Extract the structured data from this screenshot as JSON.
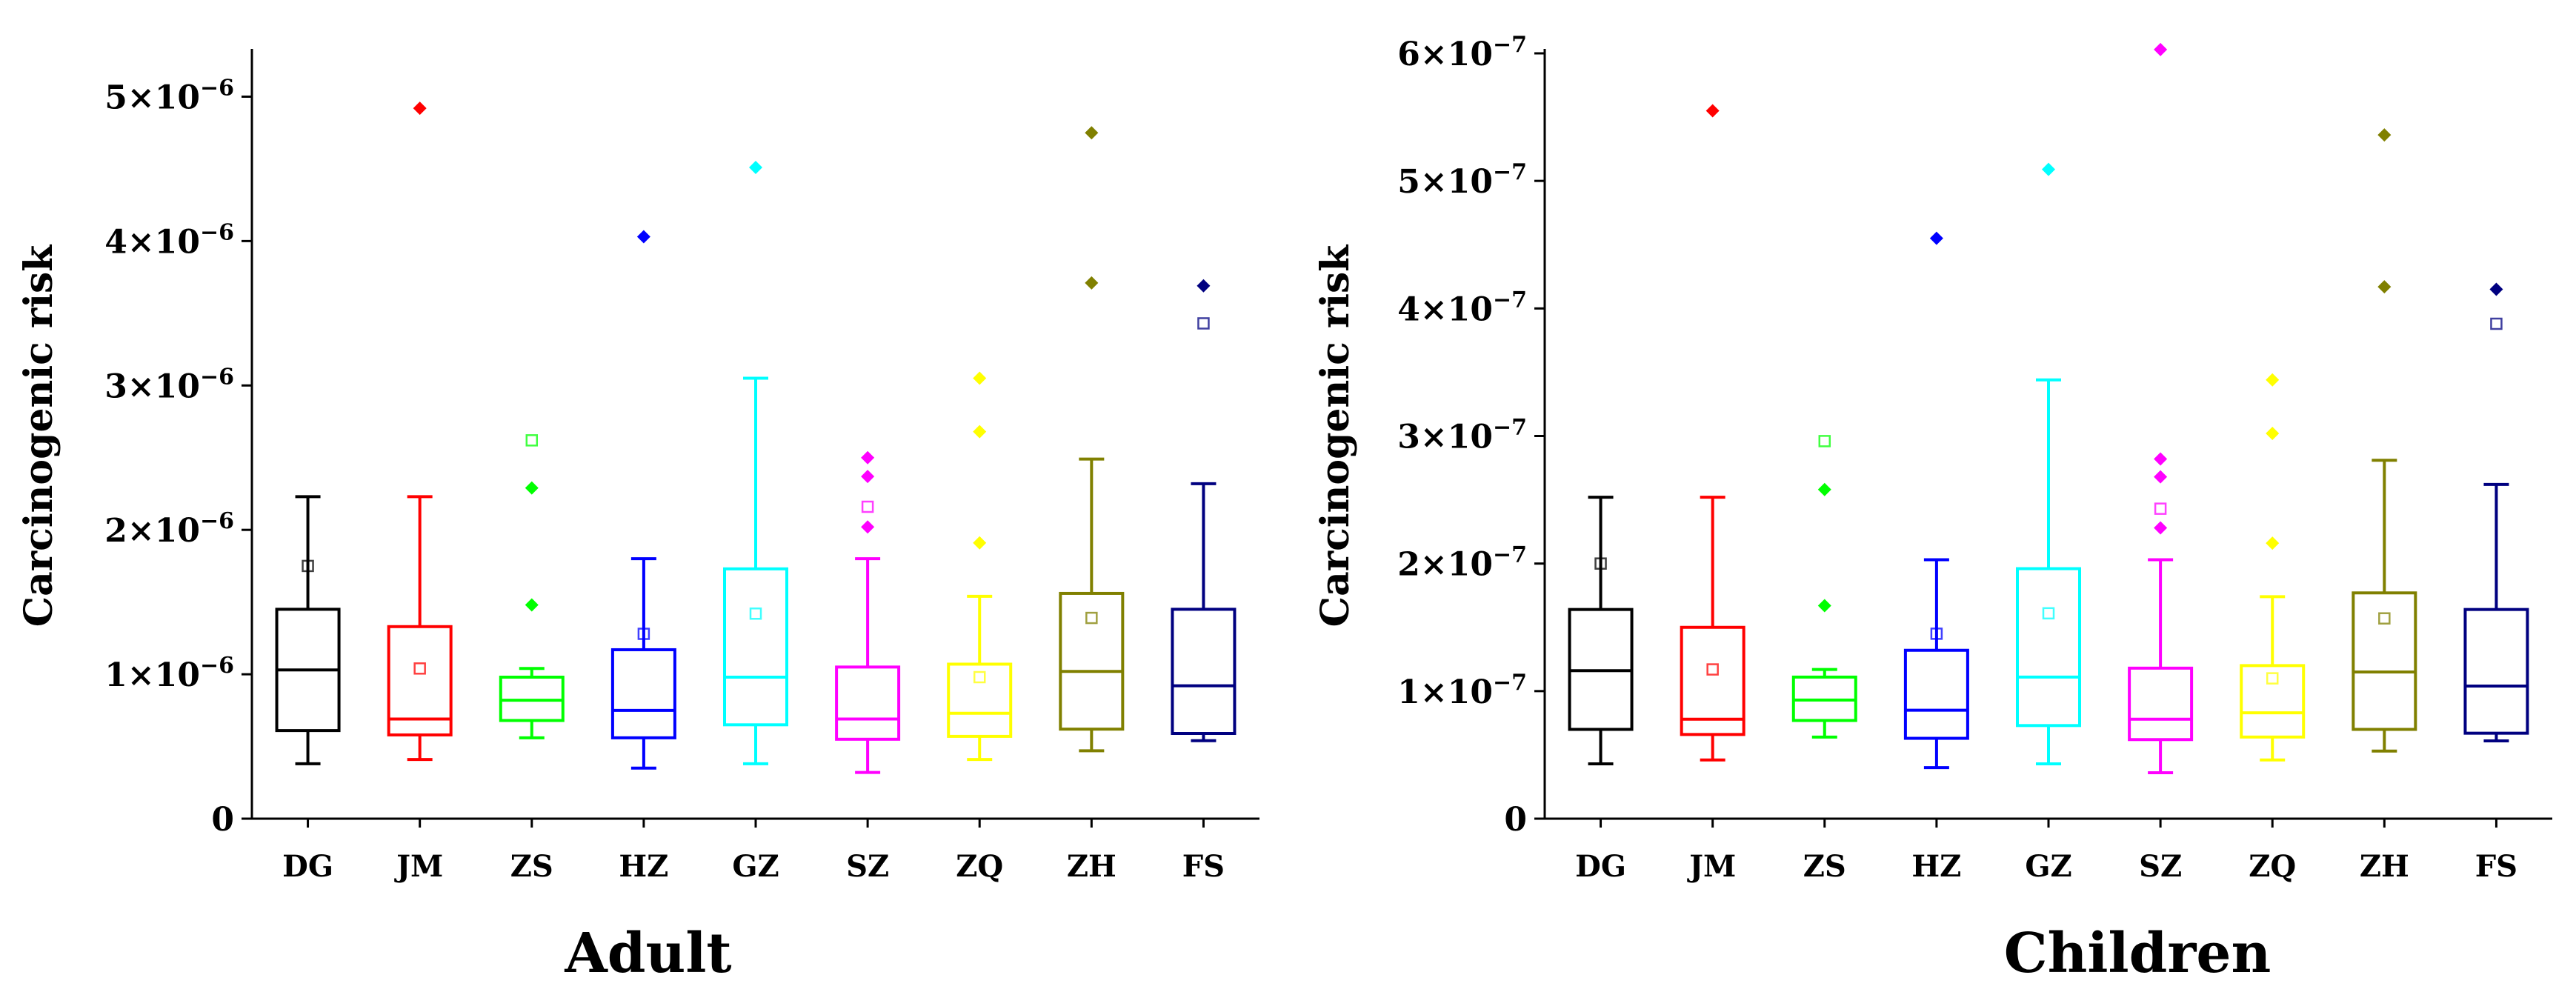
{
  "chart_data": [
    {
      "type": "box",
      "title": "Adult",
      "ylabel": "Carcinogenic risk",
      "ylim": [
        0,
        5.3e-06
      ],
      "yticks": [
        0,
        1e-06,
        2e-06,
        3e-06,
        4e-06,
        5e-06
      ],
      "ytick_labels": [
        {
          "text": "0"
        },
        {
          "mant": "1",
          "exp": "−6"
        },
        {
          "mant": "2",
          "exp": "−6"
        },
        {
          "mant": "3",
          "exp": "−6"
        },
        {
          "mant": "4",
          "exp": "−6"
        },
        {
          "mant": "5",
          "exp": "−6"
        }
      ],
      "categories": [
        "DG",
        "JM",
        "ZS",
        "HZ",
        "GZ",
        "SZ",
        "ZQ",
        "ZH",
        "FS"
      ],
      "series": [
        {
          "name": "DG",
          "color": "#000000",
          "whisker_low": 3.8e-07,
          "q1": 6.1e-07,
          "median": 1.03e-06,
          "q3": 1.45e-06,
          "whisker_high": 2.23e-06,
          "mean": 1.75e-06,
          "outliers": []
        },
        {
          "name": "JM",
          "color": "#ff0000",
          "whisker_low": 4.1e-07,
          "q1": 5.8e-07,
          "median": 6.9e-07,
          "q3": 1.33e-06,
          "whisker_high": 2.23e-06,
          "mean": 1.04e-06,
          "outliers": [
            4.92e-06
          ]
        },
        {
          "name": "ZS",
          "color": "#00ff00",
          "whisker_low": 5.6e-07,
          "q1": 6.8e-07,
          "median": 8.2e-07,
          "q3": 9.8e-07,
          "whisker_high": 1.04e-06,
          "mean": 2.62e-06,
          "outliers": [
            1.48e-06,
            2.29e-06
          ]
        },
        {
          "name": "HZ",
          "color": "#0000ff",
          "whisker_low": 3.5e-07,
          "q1": 5.6e-07,
          "median": 7.5e-07,
          "q3": 1.17e-06,
          "whisker_high": 1.8e-06,
          "mean": 1.28e-06,
          "outliers": [
            4.03e-06
          ]
        },
        {
          "name": "GZ",
          "color": "#00ffff",
          "whisker_low": 3.8e-07,
          "q1": 6.5e-07,
          "median": 9.8e-07,
          "q3": 1.73e-06,
          "whisker_high": 3.05e-06,
          "mean": 1.42e-06,
          "outliers": [
            4.51e-06
          ]
        },
        {
          "name": "SZ",
          "color": "#ff00ff",
          "whisker_low": 3.2e-07,
          "q1": 5.5e-07,
          "median": 6.9e-07,
          "q3": 1.05e-06,
          "whisker_high": 1.8e-06,
          "mean": 2.16e-06,
          "outliers": [
            2.02e-06,
            2.37e-06,
            2.5e-06
          ]
        },
        {
          "name": "ZQ",
          "color": "#ffff00",
          "whisker_low": 4.1e-07,
          "q1": 5.7e-07,
          "median": 7.3e-07,
          "q3": 1.07e-06,
          "whisker_high": 1.54e-06,
          "mean": 9.8e-07,
          "outliers": [
            1.91e-06,
            2.68e-06,
            3.05e-06
          ]
        },
        {
          "name": "ZH",
          "color": "#808000",
          "whisker_low": 4.7e-07,
          "q1": 6.2e-07,
          "median": 1.02e-06,
          "q3": 1.56e-06,
          "whisker_high": 2.49e-06,
          "mean": 1.39e-06,
          "outliers": [
            3.71e-06,
            4.75e-06
          ]
        },
        {
          "name": "FS",
          "color": "#000080",
          "whisker_low": 5.4e-07,
          "q1": 5.9e-07,
          "median": 9.2e-07,
          "q3": 1.45e-06,
          "whisker_high": 2.32e-06,
          "mean": 3.43e-06,
          "outliers": [
            3.69e-06
          ]
        }
      ]
    },
    {
      "type": "box",
      "title": "Children",
      "ylabel": "Carcinogenic risk",
      "ylim": [
        0,
        6e-07
      ],
      "yticks": [
        0,
        1e-07,
        2e-07,
        3e-07,
        4e-07,
        5e-07,
        6e-07
      ],
      "ytick_labels": [
        {
          "text": "0"
        },
        {
          "mant": "1",
          "exp": "−7"
        },
        {
          "mant": "2",
          "exp": "−7"
        },
        {
          "mant": "3",
          "exp": "−7"
        },
        {
          "mant": "4",
          "exp": "−7"
        },
        {
          "mant": "5",
          "exp": "−7"
        },
        {
          "mant": "6",
          "exp": "−7"
        }
      ],
      "categories": [
        "DG",
        "JM",
        "ZS",
        "HZ",
        "GZ",
        "SZ",
        "ZQ",
        "ZH",
        "FS"
      ],
      "series": [
        {
          "name": "DG",
          "color": "#000000",
          "whisker_low": 4.3e-08,
          "q1": 7e-08,
          "median": 1.16e-07,
          "q3": 1.64e-07,
          "whisker_high": 2.52e-07,
          "mean": 2e-07,
          "outliers": []
        },
        {
          "name": "JM",
          "color": "#ff0000",
          "whisker_low": 4.6e-08,
          "q1": 6.6e-08,
          "median": 7.8e-08,
          "q3": 1.5e-07,
          "whisker_high": 2.52e-07,
          "mean": 1.17e-07,
          "outliers": [
            5.55e-07
          ]
        },
        {
          "name": "ZS",
          "color": "#00ff00",
          "whisker_low": 6.4e-08,
          "q1": 7.7e-08,
          "median": 9.3e-08,
          "q3": 1.11e-07,
          "whisker_high": 1.17e-07,
          "mean": 2.96e-07,
          "outliers": [
            1.67e-07,
            2.58e-07
          ]
        },
        {
          "name": "HZ",
          "color": "#0000ff",
          "whisker_low": 4e-08,
          "q1": 6.3e-08,
          "median": 8.5e-08,
          "q3": 1.32e-07,
          "whisker_high": 2.03e-07,
          "mean": 1.45e-07,
          "outliers": [
            4.55e-07
          ]
        },
        {
          "name": "GZ",
          "color": "#00ffff",
          "whisker_low": 4.3e-08,
          "q1": 7.3e-08,
          "median": 1.11e-07,
          "q3": 1.96e-07,
          "whisker_high": 3.44e-07,
          "mean": 1.61e-07,
          "outliers": [
            5.09e-07
          ]
        },
        {
          "name": "SZ",
          "color": "#ff00ff",
          "whisker_low": 3.6e-08,
          "q1": 6.2e-08,
          "median": 7.8e-08,
          "q3": 1.18e-07,
          "whisker_high": 2.03e-07,
          "mean": 2.43e-07,
          "outliers": [
            2.28e-07,
            2.68e-07,
            2.82e-07,
            6.03e-07
          ]
        },
        {
          "name": "ZQ",
          "color": "#ffff00",
          "whisker_low": 4.6e-08,
          "q1": 6.4e-08,
          "median": 8.3e-08,
          "q3": 1.2e-07,
          "whisker_high": 1.74e-07,
          "mean": 1.1e-07,
          "outliers": [
            2.16e-07,
            3.02e-07,
            3.44e-07
          ]
        },
        {
          "name": "ZH",
          "color": "#808000",
          "whisker_low": 5.3e-08,
          "q1": 7e-08,
          "median": 1.15e-07,
          "q3": 1.77e-07,
          "whisker_high": 2.81e-07,
          "mean": 1.57e-07,
          "outliers": [
            4.17e-07,
            5.36e-07
          ]
        },
        {
          "name": "FS",
          "color": "#000080",
          "whisker_low": 6.1e-08,
          "q1": 6.7e-08,
          "median": 1.04e-07,
          "q3": 1.64e-07,
          "whisker_high": 2.62e-07,
          "mean": 3.88e-07,
          "outliers": [
            4.15e-07
          ]
        }
      ]
    }
  ]
}
